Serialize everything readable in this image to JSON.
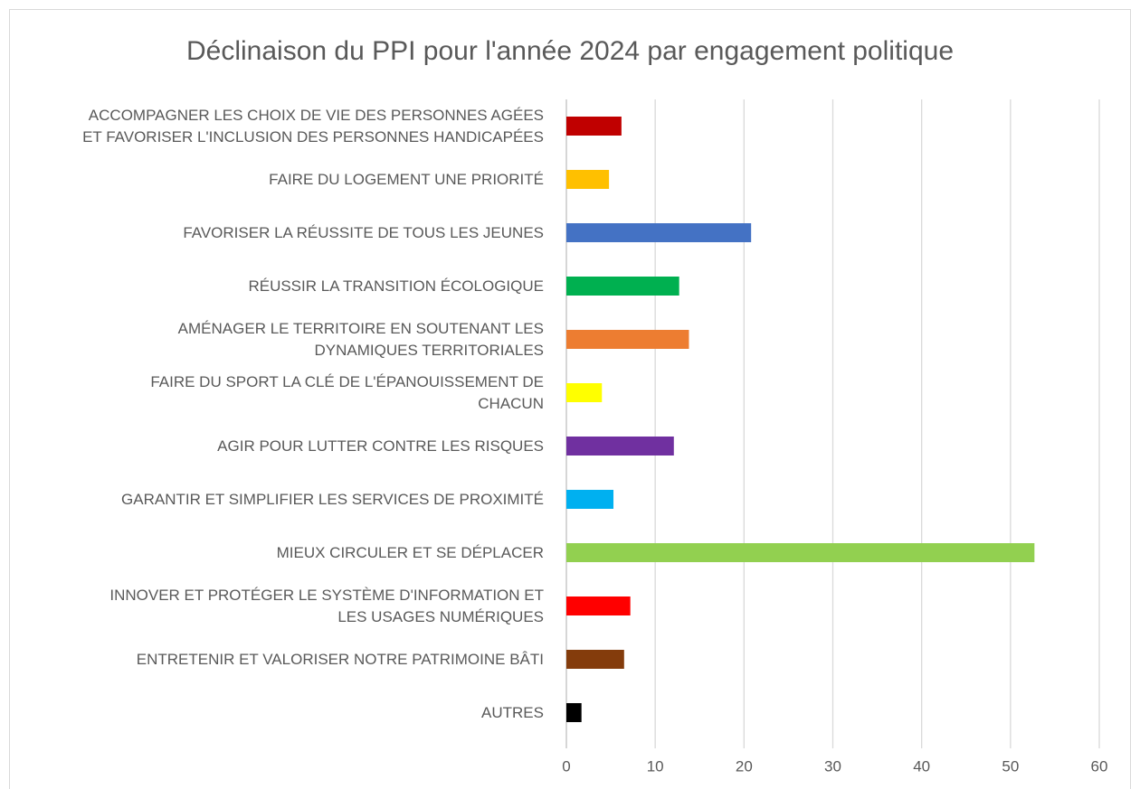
{
  "chart_data": {
    "type": "barh",
    "title": "Déclinaison du PPI pour l'année 2024 par engagement politique",
    "categories": [
      "ACCOMPAGNER LES CHOIX DE VIE DES PERSONNES AGÉES\nET FAVORISER L'INCLUSION DES PERSONNES HANDICAPÉES",
      "FAIRE DU LOGEMENT UNE PRIORITÉ",
      "FAVORISER LA RÉUSSITE DE TOUS LES JEUNES",
      "RÉUSSIR LA TRANSITION ÉCOLOGIQUE",
      "AMÉNAGER LE TERRITOIRE EN SOUTENANT LES\nDYNAMIQUES TERRITORIALES",
      "FAIRE DU SPORT LA CLÉ DE L'ÉPANOUISSEMENT DE\nCHACUN",
      "AGIR POUR LUTTER CONTRE LES RISQUES",
      "GARANTIR ET SIMPLIFIER LES SERVICES DE PROXIMITÉ",
      "MIEUX CIRCULER ET SE DÉPLACER",
      "INNOVER ET PROTÉGER LE SYSTÈME D'INFORMATION ET\nLES USAGES NUMÉRIQUES",
      "ENTRETENIR ET VALORISER NOTRE PATRIMOINE BÂTI",
      "AUTRES"
    ],
    "values": [
      6.2,
      4.8,
      20.8,
      12.7,
      13.8,
      4.0,
      12.1,
      5.3,
      52.7,
      7.2,
      6.5,
      1.7
    ],
    "colors": [
      "#c00000",
      "#ffc000",
      "#4472c4",
      "#00b050",
      "#ed7d31",
      "#ffff00",
      "#7030a0",
      "#00b0f0",
      "#92d050",
      "#ff0000",
      "#843c0c",
      "#000000"
    ],
    "xlim": [
      0,
      60
    ],
    "xticks": [
      0,
      10,
      20,
      30,
      40,
      50,
      60
    ],
    "grid": true
  }
}
